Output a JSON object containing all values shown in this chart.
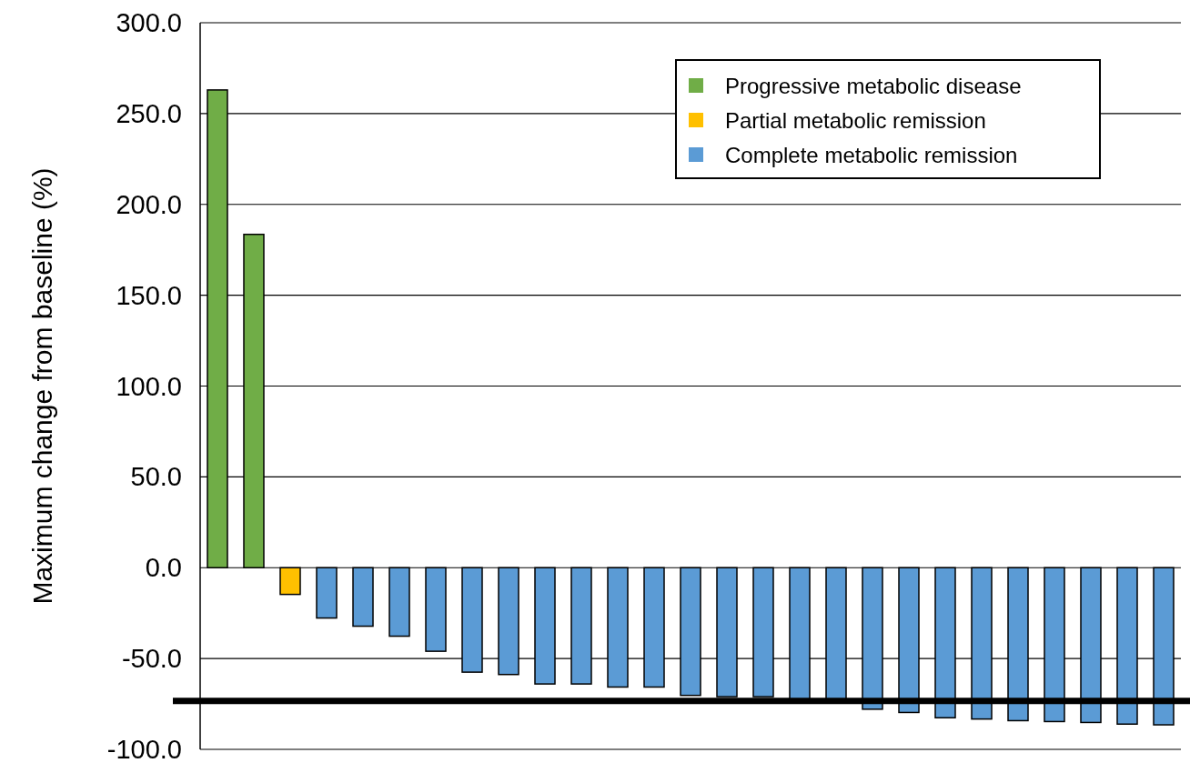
{
  "chart_data": {
    "type": "bar",
    "ylabel": "Maximum change from baseline (%)",
    "categories": [
      null,
      null,
      null,
      null,
      null,
      null,
      null,
      null,
      null,
      null,
      null,
      null,
      null,
      null,
      null,
      null,
      null,
      null,
      null,
      null,
      null,
      null,
      null,
      null,
      null,
      null,
      null
    ],
    "series": [
      {
        "name": "Progressive metabolic disease",
        "color": "#70ad47",
        "values": [
          263,
          183.5,
          null,
          null,
          null,
          null,
          null,
          null,
          null,
          null,
          null,
          null,
          null,
          null,
          null,
          null,
          null,
          null,
          null,
          null,
          null,
          null,
          null,
          null,
          null,
          null,
          null
        ]
      },
      {
        "name": "Partial metabolic remission",
        "color": "#ffc000",
        "values": [
          null,
          null,
          -14.7,
          null,
          null,
          null,
          null,
          null,
          null,
          null,
          null,
          null,
          null,
          null,
          null,
          null,
          null,
          null,
          null,
          null,
          null,
          null,
          null,
          null,
          null,
          null,
          null
        ]
      },
      {
        "name": "Complete metabolic remission",
        "color": "#5b9bd5",
        "values": [
          null,
          null,
          null,
          -27.7,
          -32.2,
          -37.7,
          -46,
          -57.5,
          -58.8,
          -64,
          -64,
          -65.7,
          -65.7,
          -70.3,
          -71,
          -71,
          -73,
          -73,
          -77.9,
          -79.7,
          -82.6,
          -83.3,
          -84.2,
          -84.7,
          -85.2,
          -86.1,
          -86.5
        ]
      }
    ],
    "ylim": [
      -100,
      300
    ],
    "yticks": [
      {
        "value": -100,
        "label": "-100.0"
      },
      {
        "value": -50,
        "label": "-50.0"
      },
      {
        "value": 0,
        "label": "0.0"
      },
      {
        "value": 50,
        "label": "50.0"
      },
      {
        "value": 100,
        "label": "100.0"
      },
      {
        "value": 150,
        "label": "150.0"
      },
      {
        "value": 200,
        "label": "200.0"
      },
      {
        "value": 250,
        "label": "250.0"
      },
      {
        "value": 300,
        "label": "300.0"
      }
    ],
    "grid": "y",
    "legend": "top right",
    "ref_lines": [
      {
        "axis": "y",
        "value": -73.3,
        "color": "#000000"
      }
    ]
  }
}
